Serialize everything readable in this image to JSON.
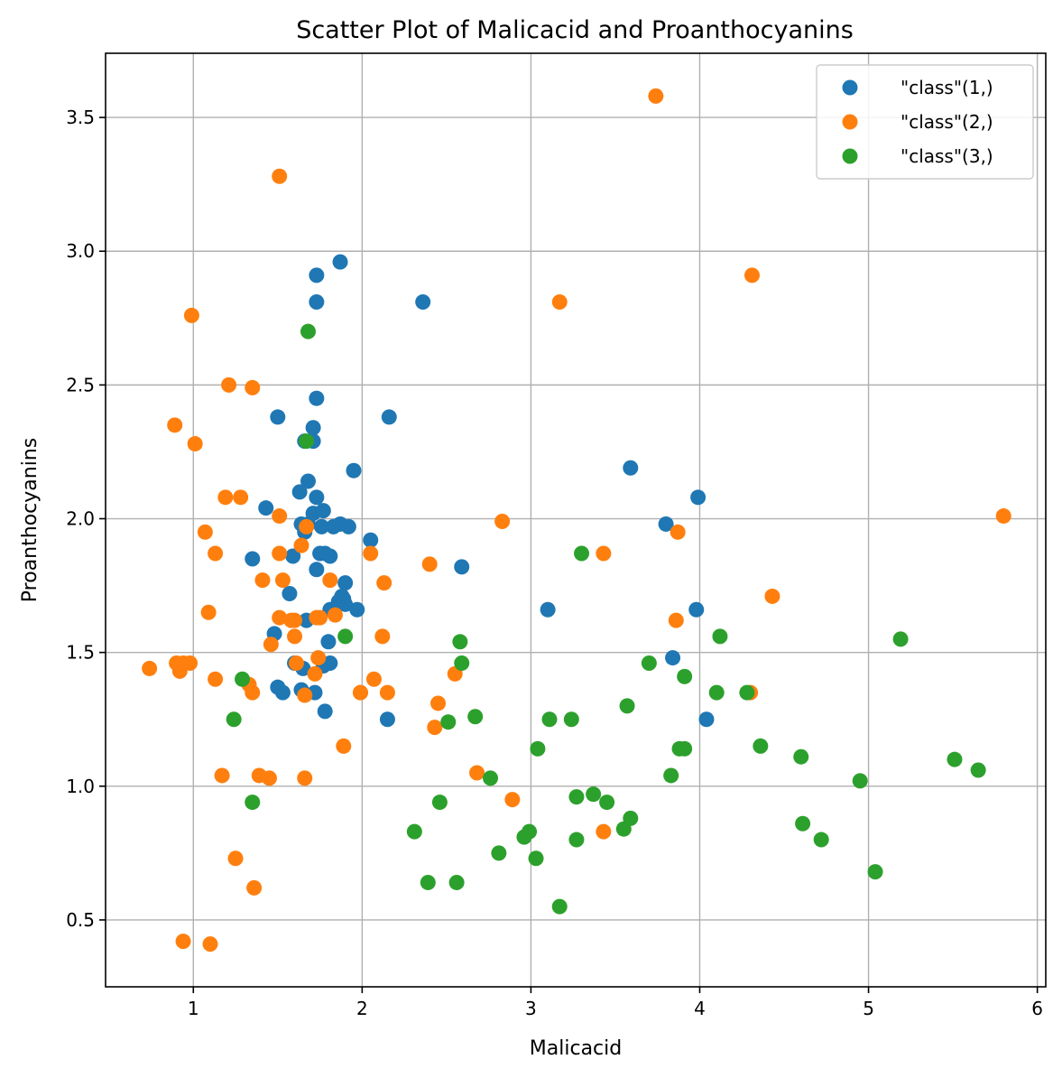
{
  "chart_data": {
    "type": "scatter",
    "title": "Scatter Plot of Malicacid and Proanthocyanins",
    "xlabel": "Malicacid",
    "ylabel": "Proanthocyanins",
    "xlim": [
      0.48,
      6.05
    ],
    "ylim": [
      0.25,
      3.74
    ],
    "xticks": [
      1,
      2,
      3,
      4,
      5,
      6
    ],
    "yticks": [
      0.5,
      1.0,
      1.5,
      2.0,
      2.5,
      3.0,
      3.5
    ],
    "ytick_labels": [
      "0.5",
      "1.0",
      "1.5",
      "2.0",
      "2.5",
      "3.0",
      "3.5"
    ],
    "grid": true,
    "legend_position": "top-right",
    "series": [
      {
        "name": "\"class\"(1,)",
        "color": "#1f77b4",
        "points": [
          [
            1.71,
            2.29
          ],
          [
            1.78,
            1.28
          ],
          [
            2.36,
            2.81
          ],
          [
            1.95,
            2.18
          ],
          [
            2.59,
            1.82
          ],
          [
            1.76,
            1.97
          ],
          [
            1.87,
            1.98
          ],
          [
            2.15,
            1.25
          ],
          [
            1.64,
            1.98
          ],
          [
            1.35,
            1.85
          ],
          [
            2.16,
            2.38
          ],
          [
            1.48,
            1.57
          ],
          [
            1.73,
            1.81
          ],
          [
            1.73,
            2.81
          ],
          [
            1.87,
            2.96
          ],
          [
            1.81,
            1.46
          ],
          [
            1.92,
            1.97
          ],
          [
            1.57,
            1.72
          ],
          [
            1.59,
            1.86
          ],
          [
            3.1,
            1.66
          ],
          [
            1.63,
            2.1
          ],
          [
            3.8,
            1.98
          ],
          [
            1.86,
            1.69
          ],
          [
            1.6,
            1.46
          ],
          [
            1.81,
            1.66
          ],
          [
            2.05,
            1.92
          ],
          [
            1.77,
            1.45
          ],
          [
            1.72,
            1.35
          ],
          [
            1.9,
            1.76
          ],
          [
            1.68,
            1.98
          ],
          [
            1.5,
            2.38
          ],
          [
            1.66,
            1.95
          ],
          [
            1.83,
            1.97
          ],
          [
            1.53,
            1.35
          ],
          [
            1.8,
            1.54
          ],
          [
            1.81,
            1.86
          ],
          [
            1.64,
            1.36
          ],
          [
            1.65,
            1.44
          ],
          [
            1.5,
            1.37
          ],
          [
            3.59,
            2.19
          ],
          [
            1.71,
            2.02
          ],
          [
            3.84,
            1.48
          ],
          [
            1.89,
            1.7
          ],
          [
            3.98,
            1.66
          ],
          [
            1.77,
            2.03
          ],
          [
            4.04,
            1.25
          ],
          [
            3.99,
            2.08
          ],
          [
            1.68,
            2.14
          ],
          [
            1.73,
            2.08
          ],
          [
            1.43,
            2.04
          ],
          [
            1.67,
            1.62
          ],
          [
            1.9,
            1.68
          ],
          [
            1.97,
            1.66
          ],
          [
            1.73,
            2.45
          ],
          [
            1.73,
            2.91
          ],
          [
            1.71,
            2.34
          ],
          [
            1.75,
            1.87
          ],
          [
            1.78,
            1.87
          ],
          [
            1.66,
            2.29
          ],
          [
            1.88,
            1.71
          ]
        ]
      },
      {
        "name": "\"class\"(2,)",
        "color": "#ff7f0e",
        "points": [
          [
            0.94,
            0.42
          ],
          [
            1.1,
            0.41
          ],
          [
            1.36,
            0.62
          ],
          [
            1.25,
            0.73
          ],
          [
            1.13,
            1.87
          ],
          [
            1.45,
            1.03
          ],
          [
            1.21,
            2.5
          ],
          [
            1.01,
            2.28
          ],
          [
            1.17,
            1.04
          ],
          [
            0.94,
            1.46
          ],
          [
            1.19,
            2.08
          ],
          [
            1.61,
            1.46
          ],
          [
            1.73,
            1.63
          ],
          [
            1.51,
            1.87
          ],
          [
            1.09,
            1.65
          ],
          [
            1.35,
            1.35
          ],
          [
            1.13,
            1.4
          ],
          [
            1.66,
            1.03
          ],
          [
            1.64,
            1.9
          ],
          [
            1.51,
            1.63
          ],
          [
            0.99,
            2.76
          ],
          [
            3.87,
            1.95
          ],
          [
            5.8,
            2.01
          ],
          [
            3.74,
            3.58
          ],
          [
            1.39,
            1.04
          ],
          [
            1.41,
            1.77
          ],
          [
            1.46,
            1.53
          ],
          [
            1.33,
            1.38
          ],
          [
            1.6,
            1.62
          ],
          [
            1.28,
            2.08
          ],
          [
            1.67,
            1.97
          ],
          [
            1.51,
            2.01
          ],
          [
            1.58,
            1.62
          ],
          [
            2.13,
            1.76
          ],
          [
            1.51,
            3.28
          ],
          [
            2.07,
            1.4
          ],
          [
            1.72,
            1.42
          ],
          [
            1.66,
            1.34
          ],
          [
            1.89,
            1.15
          ],
          [
            0.89,
            2.35
          ],
          [
            1.74,
            1.48
          ],
          [
            1.6,
            1.56
          ],
          [
            0.74,
            1.44
          ],
          [
            1.07,
            1.95
          ],
          [
            0.9,
            1.46
          ],
          [
            4.31,
            2.91
          ],
          [
            1.81,
            1.77
          ],
          [
            2.05,
            1.87
          ],
          [
            4.43,
            1.71
          ],
          [
            1.99,
            1.35
          ],
          [
            3.43,
            1.87
          ],
          [
            1.53,
            1.77
          ],
          [
            2.83,
            1.99
          ],
          [
            1.84,
            1.64
          ],
          [
            1.35,
            2.49
          ],
          [
            4.3,
            1.35
          ],
          [
            2.4,
            1.83
          ],
          [
            2.45,
            1.31
          ],
          [
            2.55,
            1.42
          ],
          [
            3.86,
            1.62
          ],
          [
            2.43,
            1.22
          ],
          [
            2.68,
            1.05
          ],
          [
            2.89,
            0.95
          ],
          [
            3.17,
            2.81
          ],
          [
            3.43,
            0.83
          ],
          [
            1.99,
            1.35
          ],
          [
            2.12,
            1.56
          ],
          [
            2.15,
            1.35
          ],
          [
            0.98,
            1.46
          ],
          [
            0.92,
            1.43
          ],
          [
            1.75,
            1.63
          ]
        ]
      },
      {
        "name": "\"class\"(3,)",
        "color": "#2ca02c",
        "points": [
          [
            1.68,
            2.7
          ],
          [
            1.67,
            2.29
          ],
          [
            1.9,
            1.56
          ],
          [
            1.29,
            1.4
          ],
          [
            1.24,
            1.25
          ],
          [
            1.35,
            0.94
          ],
          [
            2.31,
            0.83
          ],
          [
            2.39,
            0.64
          ],
          [
            2.46,
            0.94
          ],
          [
            2.51,
            1.24
          ],
          [
            2.56,
            0.64
          ],
          [
            2.58,
            1.54
          ],
          [
            2.59,
            1.46
          ],
          [
            2.67,
            1.26
          ],
          [
            2.76,
            1.03
          ],
          [
            2.81,
            0.75
          ],
          [
            2.96,
            0.81
          ],
          [
            2.99,
            0.83
          ],
          [
            3.03,
            0.73
          ],
          [
            3.04,
            1.14
          ],
          [
            3.11,
            1.25
          ],
          [
            3.17,
            0.55
          ],
          [
            3.24,
            1.25
          ],
          [
            3.27,
            0.96
          ],
          [
            3.27,
            0.8
          ],
          [
            3.3,
            1.87
          ],
          [
            3.37,
            0.97
          ],
          [
            3.45,
            0.94
          ],
          [
            3.55,
            0.84
          ],
          [
            3.57,
            1.3
          ],
          [
            3.59,
            0.88
          ],
          [
            3.7,
            1.46
          ],
          [
            3.83,
            1.04
          ],
          [
            3.88,
            1.14
          ],
          [
            3.91,
            1.41
          ],
          [
            3.91,
            1.14
          ],
          [
            4.1,
            1.35
          ],
          [
            4.12,
            1.56
          ],
          [
            4.28,
            1.35
          ],
          [
            4.36,
            1.15
          ],
          [
            4.6,
            1.11
          ],
          [
            4.61,
            0.86
          ],
          [
            4.72,
            0.8
          ],
          [
            4.95,
            1.02
          ],
          [
            5.04,
            0.68
          ],
          [
            5.19,
            1.55
          ],
          [
            5.51,
            1.1
          ],
          [
            5.65,
            1.06
          ]
        ]
      }
    ]
  }
}
